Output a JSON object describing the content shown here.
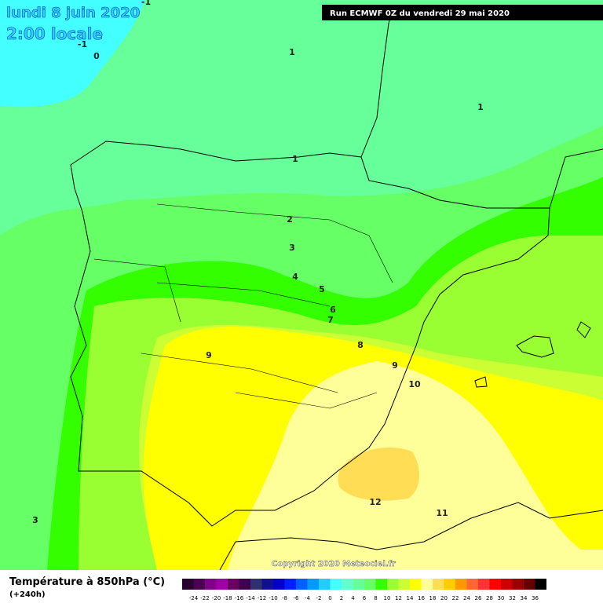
{
  "header": {
    "date": "lundi 8 juin 2020",
    "time": "2:00 locale",
    "run": "Run ECMWF 0Z du vendredi 29 mai 2020"
  },
  "contour_labels": [
    0,
    1,
    1,
    1,
    2,
    3,
    4,
    5,
    6,
    7,
    8,
    9,
    9,
    10,
    12,
    11,
    3,
    -1,
    -1
  ],
  "copyright": "Copyright 2020 Meteociel.fr",
  "legend": {
    "title": "Température à 850hPa (°C)",
    "subtitle": "(+240h)",
    "ticks": [
      -24,
      -22,
      -20,
      -18,
      -16,
      -14,
      -12,
      -10,
      -8,
      -6,
      -4,
      -2,
      0,
      2,
      4,
      6,
      8,
      10,
      12,
      14,
      16,
      18,
      20,
      22,
      24,
      26,
      28,
      30,
      32,
      34,
      36
    ],
    "colors": [
      "#2a0030",
      "#4a0050",
      "#80008a",
      "#a000a8",
      "#6a0060",
      "#400050",
      "#303070",
      "#101090",
      "#0000c8",
      "#0020ff",
      "#0060ff",
      "#0099ff",
      "#22ccff",
      "#44ffff",
      "#66ffcc",
      "#66ff99",
      "#66ff66",
      "#33ff00",
      "#99ff33",
      "#ccff33",
      "#ffff00",
      "#ffff99",
      "#ffdd55",
      "#ffcc00",
      "#ff9900",
      "#ff6633",
      "#ff3333",
      "#ff0000",
      "#cc0000",
      "#990000",
      "#660000",
      "#000000"
    ]
  }
}
